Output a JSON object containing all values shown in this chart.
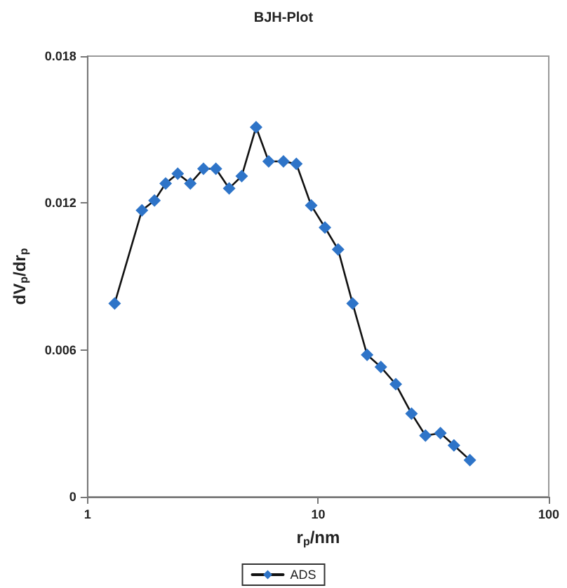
{
  "chart_data": {
    "type": "line",
    "title": "BJH-Plot",
    "xlabel": "r$_{p}$/nm",
    "ylabel": "dV$_{p}$/dr$_{p}$",
    "log": "x",
    "xlim": [
      1,
      100
    ],
    "xticks": [
      1,
      10,
      100
    ],
    "ylim": [
      0,
      0.018
    ],
    "yticks": [
      0,
      0.006,
      0.012,
      0.018
    ],
    "grid": false,
    "legend": "bottom",
    "marker": "diamond",
    "line_style": "solid",
    "series": [
      {
        "name": "ADS",
        "color": "#2e74c8",
        "x": [
          1.31,
          1.72,
          1.95,
          2.18,
          2.46,
          2.79,
          3.18,
          3.6,
          4.11,
          4.66,
          5.38,
          6.1,
          7.07,
          8.04,
          9.33,
          10.7,
          12.2,
          14.1,
          16.3,
          18.7,
          21.7,
          25.4,
          29.2,
          33.9,
          38.8,
          45.5
        ],
        "values": [
          0.0079,
          0.0117,
          0.0121,
          0.0128,
          0.0132,
          0.0128,
          0.0134,
          0.0134,
          0.0126,
          0.0131,
          0.0151,
          0.0137,
          0.0137,
          0.0136,
          0.0119,
          0.011,
          0.0101,
          0.0079,
          0.0058,
          0.0053,
          0.0046,
          0.0034,
          0.0025,
          0.0026,
          0.0021,
          0.0015
        ]
      }
    ]
  }
}
